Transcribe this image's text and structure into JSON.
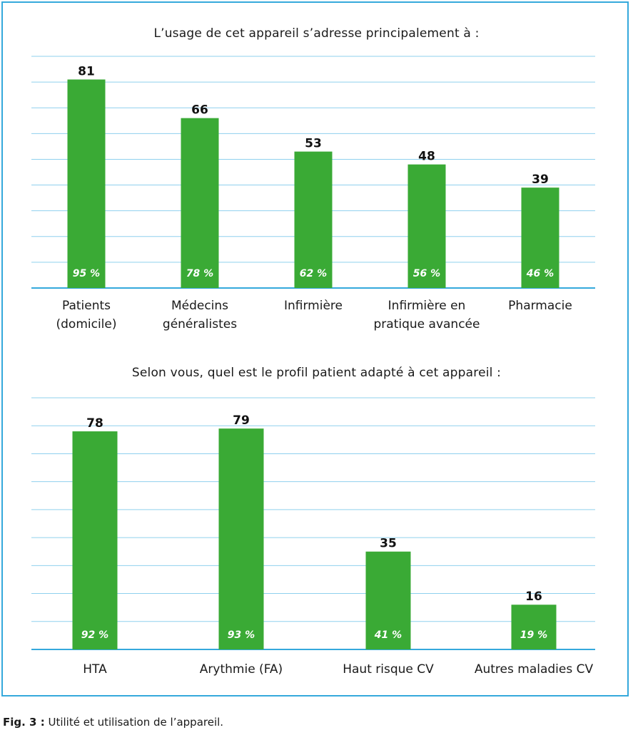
{
  "colors": {
    "frame": "#35a9dc",
    "bar": "#3aaa35",
    "grid": "#8fd0ee",
    "axis": "#35a9dc"
  },
  "chart_data": [
    {
      "type": "bar",
      "title": "L’usage de cet appareil s’adresse principalement à :",
      "categories": [
        [
          "Patients",
          "(domicile)"
        ],
        [
          "Médecins",
          "généralistes"
        ],
        [
          "Infirmière"
        ],
        [
          "Infirmière en",
          "pratique avancée"
        ],
        [
          "Pharmacie"
        ]
      ],
      "values": [
        81,
        66,
        53,
        48,
        39
      ],
      "percent_labels": [
        "95 %",
        "78 %",
        "62 %",
        "56 %",
        "46 %"
      ],
      "ylim": [
        0,
        90
      ],
      "grid": true
    },
    {
      "type": "bar",
      "title": "Selon vous, quel est le profil patient adapté à cet appareil :",
      "categories": [
        [
          "HTA"
        ],
        [
          "Arythmie (FA)"
        ],
        [
          "Haut risque CV"
        ],
        [
          "Autres maladies CV"
        ]
      ],
      "values": [
        78,
        79,
        35,
        16
      ],
      "percent_labels": [
        "92 %",
        "93 %",
        "41 %",
        "19 %"
      ],
      "ylim": [
        0,
        90
      ],
      "grid": true
    }
  ],
  "caption": {
    "label": "Fig. 3 :",
    "text": " Utilité et utilisation de l’appareil."
  }
}
